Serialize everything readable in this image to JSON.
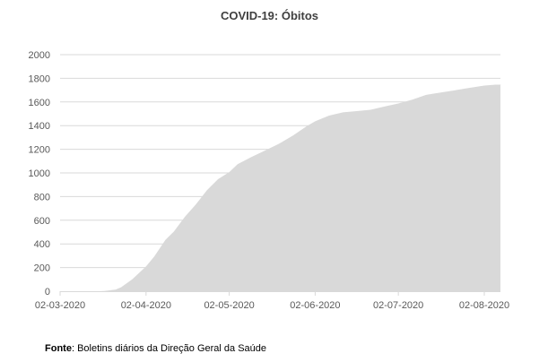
{
  "chart_data": {
    "type": "area",
    "title": "COVID-19: Óbitos",
    "xlabel": "",
    "ylabel": "",
    "ylim": [
      0,
      2000
    ],
    "yticks": [
      "0",
      "200",
      "400",
      "600",
      "800",
      "1000",
      "1200",
      "1400",
      "1600",
      "1800",
      "2000"
    ],
    "xticks": [
      "02-03-2020",
      "02-04-2020",
      "02-05-2020",
      "02-06-2020",
      "02-07-2020",
      "02-08-2020"
    ],
    "grid": "horizontal",
    "fill_color": "#d9d9d9",
    "x": [
      "2020-03-02",
      "2020-03-16",
      "2020-03-18",
      "2020-03-22",
      "2020-03-24",
      "2020-03-28",
      "2020-04-02",
      "2020-04-05",
      "2020-04-09",
      "2020-04-12",
      "2020-04-16",
      "2020-04-20",
      "2020-04-24",
      "2020-04-28",
      "2020-05-02",
      "2020-05-05",
      "2020-05-10",
      "2020-05-15",
      "2020-05-20",
      "2020-05-25",
      "2020-05-30",
      "2020-06-02",
      "2020-06-07",
      "2020-06-12",
      "2020-06-17",
      "2020-06-22",
      "2020-06-27",
      "2020-07-02",
      "2020-07-07",
      "2020-07-12",
      "2020-07-17",
      "2020-07-22",
      "2020-07-27",
      "2020-08-02",
      "2020-08-08"
    ],
    "values": [
      0,
      0,
      2,
      14,
      33,
      100,
      209,
      295,
      435,
      504,
      629,
      735,
      854,
      948,
      1007,
      1074,
      1135,
      1190,
      1247,
      1316,
      1396,
      1436,
      1485,
      1512,
      1523,
      1534,
      1561,
      1587,
      1620,
      1660,
      1679,
      1697,
      1717,
      1739,
      1750
    ]
  },
  "source": {
    "label": "Fonte",
    "text": ": Boletins diários da Direção Geral da Saúde"
  }
}
